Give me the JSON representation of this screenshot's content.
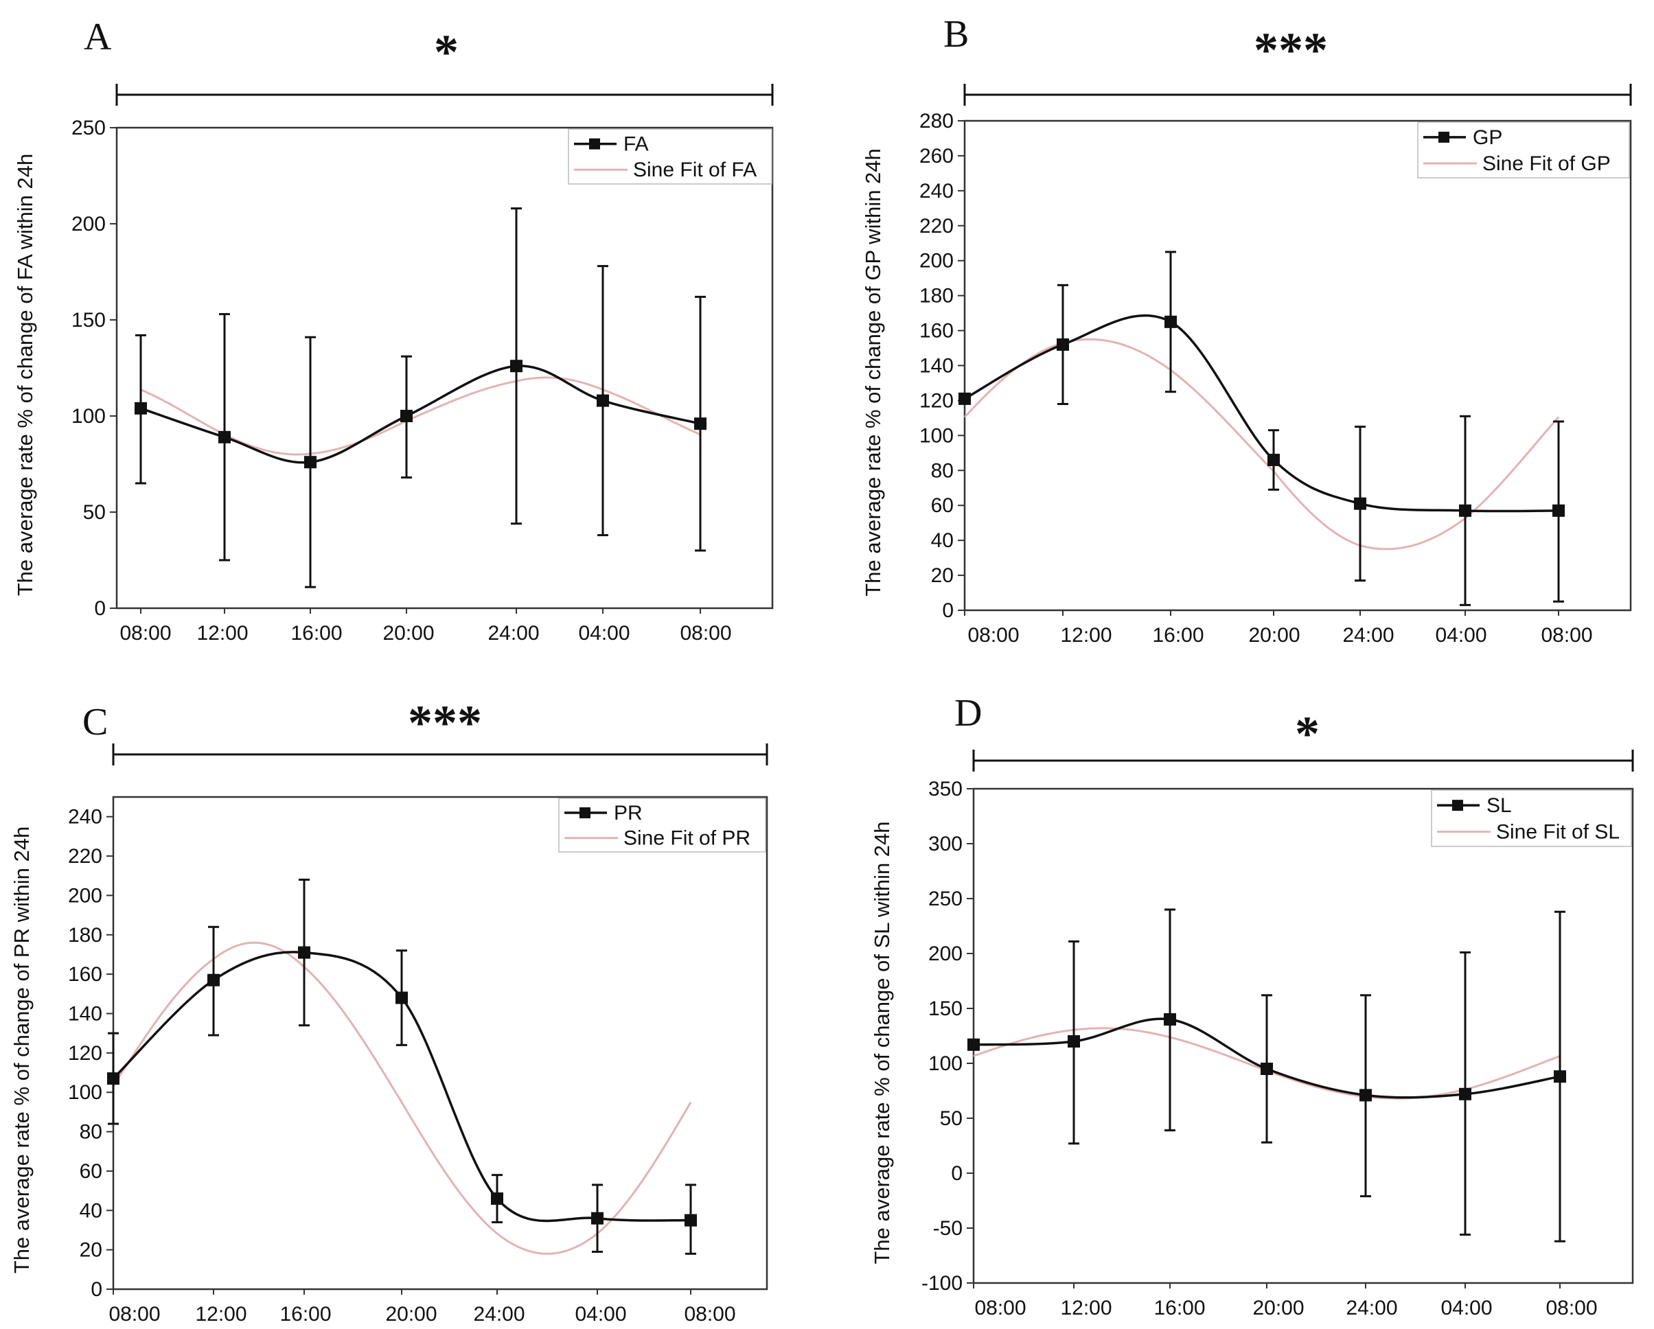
{
  "chart_data": [
    {
      "type": "line",
      "panel": "A",
      "significance": "*",
      "ylabel": "The average rate % of change of FA within 24h",
      "xlabel": "",
      "categories": [
        "08:00",
        "12:00",
        "16:00",
        "20:00",
        "24:00",
        "04:00",
        "08:00"
      ],
      "ylim": [
        0,
        250
      ],
      "yticks": [
        0,
        50,
        100,
        150,
        200,
        250
      ],
      "grid": false,
      "legend_position": "top-right",
      "series": [
        {
          "name": "FA",
          "values": [
            104,
            89,
            76,
            100,
            126,
            108,
            96
          ],
          "error_low": [
            65,
            25,
            11,
            68,
            44,
            38,
            30
          ],
          "error_high": [
            142,
            153,
            141,
            131,
            208,
            178,
            162
          ]
        },
        {
          "name": "Sine Fit of FA",
          "mean": 100,
          "amplitude": 20,
          "peak_x": 4.35,
          "period": 5
        }
      ]
    },
    {
      "type": "line",
      "panel": "B",
      "significance": "***",
      "ylabel": "The average rate % of change of GP within 24h",
      "xlabel": "",
      "categories": [
        "08:00",
        "12:00",
        "16:00",
        "20:00",
        "24:00",
        "04:00",
        "08:00"
      ],
      "ylim": [
        0,
        280
      ],
      "yticks": [
        0,
        20,
        40,
        60,
        80,
        100,
        120,
        140,
        160,
        180,
        200,
        220,
        240,
        260,
        280
      ],
      "grid": false,
      "legend_position": "top-right",
      "series": [
        {
          "name": "GP",
          "values": [
            121,
            152,
            165,
            86,
            61,
            57,
            57
          ],
          "error_low": [
            121,
            118,
            125,
            69,
            17,
            3,
            5
          ],
          "error_high": [
            121,
            186,
            205,
            103,
            105,
            111,
            108
          ]
        },
        {
          "name": "Sine Fit of GP",
          "mean": 95,
          "amplitude": 60,
          "peak_x": 1.25,
          "period": 6
        }
      ]
    },
    {
      "type": "line",
      "panel": "C",
      "significance": "***",
      "ylabel": "The average rate % of change of PR within 24h",
      "xlabel": "",
      "categories": [
        "08:00",
        "12:00",
        "16:00",
        "20:00",
        "24:00",
        "04:00",
        "08:00"
      ],
      "ylim": [
        0,
        250
      ],
      "yticks": [
        0,
        20,
        40,
        60,
        80,
        100,
        120,
        140,
        160,
        180,
        200,
        220,
        240
      ],
      "grid": false,
      "legend_position": "top-right",
      "series": [
        {
          "name": "PR",
          "values": [
            107,
            157,
            171,
            148,
            46,
            36,
            35
          ],
          "error_low": [
            84,
            129,
            134,
            124,
            34,
            19,
            18
          ],
          "error_high": [
            130,
            184,
            208,
            172,
            58,
            53,
            53
          ]
        },
        {
          "name": "Sine Fit of PR",
          "mean": 97,
          "amplitude": 79,
          "peak_x": 1.45,
          "period": 6.1
        }
      ]
    },
    {
      "type": "line",
      "panel": "D",
      "significance": "*",
      "ylabel": "The average rate % of change of SL within 24h",
      "xlabel": "",
      "categories": [
        "08:00",
        "12:00",
        "16:00",
        "20:00",
        "24:00",
        "04:00",
        "08:00"
      ],
      "ylim": [
        -100,
        350
      ],
      "yticks": [
        -100,
        -50,
        0,
        50,
        100,
        150,
        200,
        250,
        300,
        350
      ],
      "grid": false,
      "legend_position": "top-right",
      "series": [
        {
          "name": "SL",
          "values": [
            117,
            120,
            140,
            95,
            71,
            72,
            88
          ],
          "error_low": [
            117,
            27,
            39,
            28,
            -21,
            -56,
            -62
          ],
          "error_high": [
            117,
            211,
            240,
            162,
            162,
            201,
            238
          ]
        },
        {
          "name": "Sine Fit of SL",
          "mean": 100,
          "amplitude": 32,
          "peak_x": 1.3,
          "period": 6
        }
      ]
    }
  ]
}
